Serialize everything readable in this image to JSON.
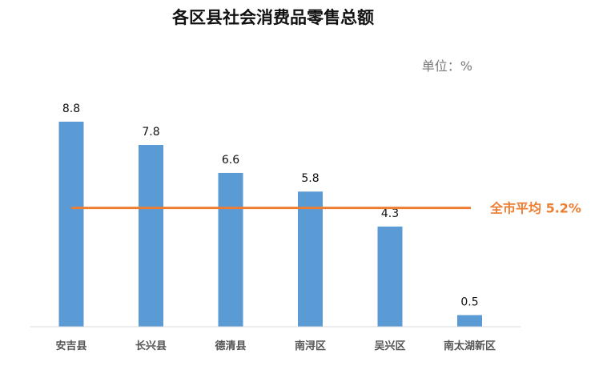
{
  "chart_data": {
    "type": "bar",
    "title": "各区县社会消费品零售总额",
    "unit_label": "单位：%",
    "categories": [
      "安吉县",
      "长兴县",
      "德清县",
      "南浔区",
      "吴兴区",
      "南太湖新区"
    ],
    "values": [
      8.8,
      7.8,
      6.6,
      5.8,
      4.3,
      0.5
    ],
    "value_labels": [
      "8.8",
      "7.8",
      "6.6",
      "5.8",
      "4.3",
      "0.5"
    ],
    "average": {
      "label": "全市平均 5.2%",
      "value": 5.2
    },
    "ylim": [
      0,
      10
    ],
    "grid": false,
    "colors": {
      "bar": "#5b9bd5",
      "average_line": "#ed7d31",
      "axis": "#d9d9d9"
    }
  }
}
